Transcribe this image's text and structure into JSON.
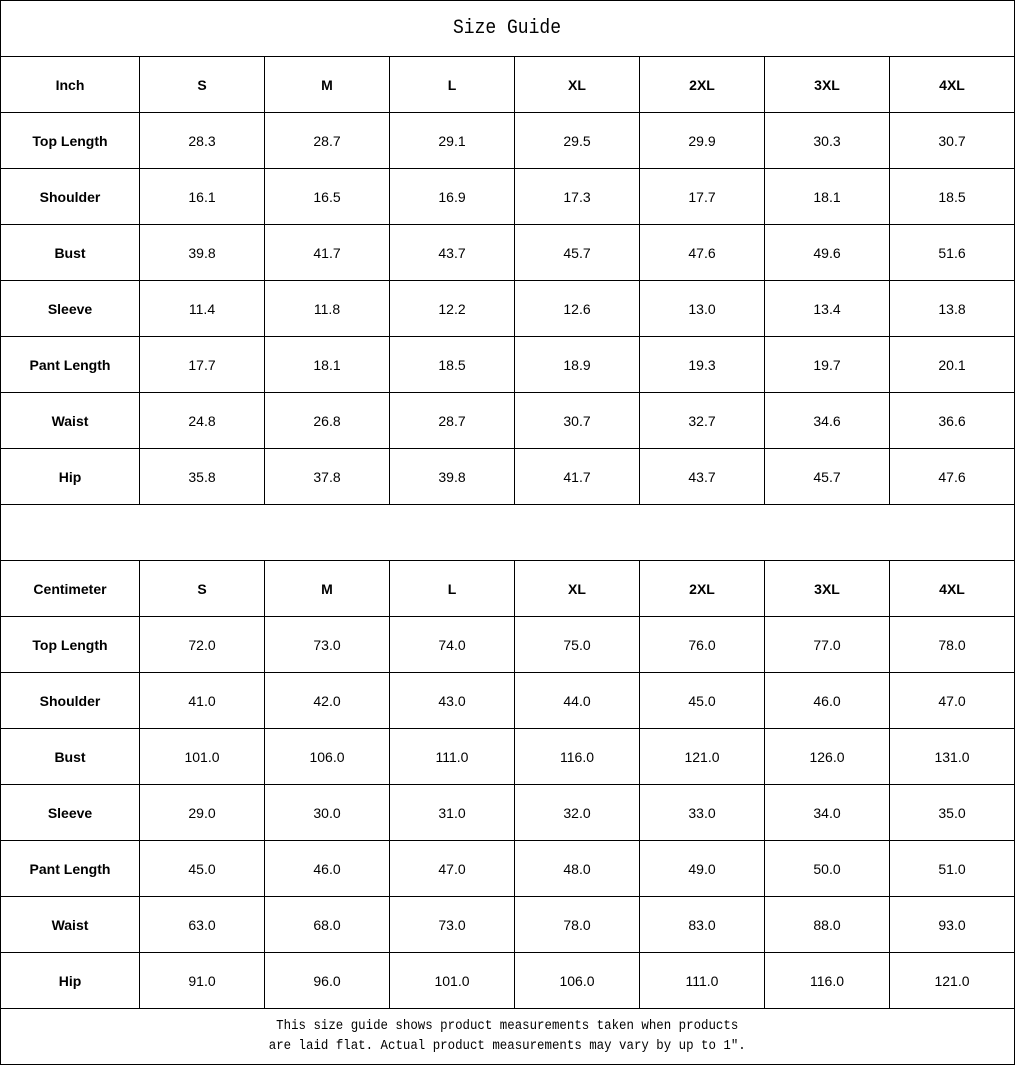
{
  "title": "Size Guide",
  "sizes": [
    "S",
    "M",
    "L",
    "XL",
    "2XL",
    "3XL",
    "4XL"
  ],
  "tables": [
    {
      "unit": "Inch",
      "rows": [
        {
          "label": "Top Length",
          "values": [
            "28.3",
            "28.7",
            "29.1",
            "29.5",
            "29.9",
            "30.3",
            "30.7"
          ]
        },
        {
          "label": "Shoulder",
          "values": [
            "16.1",
            "16.5",
            "16.9",
            "17.3",
            "17.7",
            "18.1",
            "18.5"
          ]
        },
        {
          "label": "Bust",
          "values": [
            "39.8",
            "41.7",
            "43.7",
            "45.7",
            "47.6",
            "49.6",
            "51.6"
          ]
        },
        {
          "label": "Sleeve",
          "values": [
            "11.4",
            "11.8",
            "12.2",
            "12.6",
            "13.0",
            "13.4",
            "13.8"
          ]
        },
        {
          "label": "Pant Length",
          "values": [
            "17.7",
            "18.1",
            "18.5",
            "18.9",
            "19.3",
            "19.7",
            "20.1"
          ]
        },
        {
          "label": "Waist",
          "values": [
            "24.8",
            "26.8",
            "28.7",
            "30.7",
            "32.7",
            "34.6",
            "36.6"
          ]
        },
        {
          "label": "Hip",
          "values": [
            "35.8",
            "37.8",
            "39.8",
            "41.7",
            "43.7",
            "45.7",
            "47.6"
          ]
        }
      ]
    },
    {
      "unit": "Centimeter",
      "rows": [
        {
          "label": "Top Length",
          "values": [
            "72.0",
            "73.0",
            "74.0",
            "75.0",
            "76.0",
            "77.0",
            "78.0"
          ]
        },
        {
          "label": "Shoulder",
          "values": [
            "41.0",
            "42.0",
            "43.0",
            "44.0",
            "45.0",
            "46.0",
            "47.0"
          ]
        },
        {
          "label": "Bust",
          "values": [
            "101.0",
            "106.0",
            "111.0",
            "116.0",
            "121.0",
            "126.0",
            "131.0"
          ]
        },
        {
          "label": "Sleeve",
          "values": [
            "29.0",
            "30.0",
            "31.0",
            "32.0",
            "33.0",
            "34.0",
            "35.0"
          ]
        },
        {
          "label": "Pant Length",
          "values": [
            "45.0",
            "46.0",
            "47.0",
            "48.0",
            "49.0",
            "50.0",
            "51.0"
          ]
        },
        {
          "label": "Waist",
          "values": [
            "63.0",
            "68.0",
            "73.0",
            "78.0",
            "83.0",
            "88.0",
            "93.0"
          ]
        },
        {
          "label": "Hip",
          "values": [
            "91.0",
            "96.0",
            "101.0",
            "106.0",
            "111.0",
            "116.0",
            "121.0"
          ]
        }
      ]
    }
  ],
  "footer": {
    "line1": "This size guide shows product measurements taken when products",
    "line2": "are laid flat. Actual product measurements may vary by up to 1″."
  }
}
